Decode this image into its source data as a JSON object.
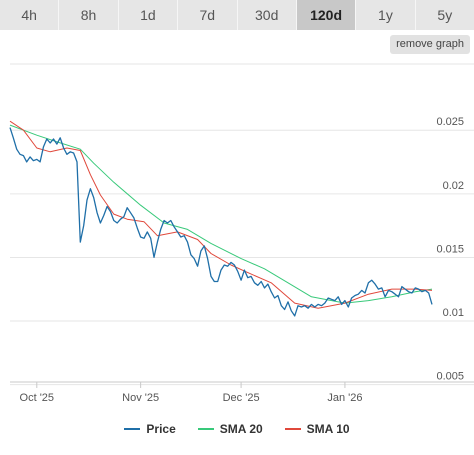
{
  "tabs": [
    {
      "label": "4h",
      "active": false
    },
    {
      "label": "8h",
      "active": false
    },
    {
      "label": "1d",
      "active": false
    },
    {
      "label": "7d",
      "active": false
    },
    {
      "label": "30d",
      "active": false
    },
    {
      "label": "120d",
      "active": true
    },
    {
      "label": "1y",
      "active": false
    },
    {
      "label": "5y",
      "active": false
    }
  ],
  "remove_graph_label": "remove graph",
  "chart_data": {
    "type": "line",
    "x_start": "2025-09-23",
    "x_end": "2026-01-27",
    "x_ticks": [
      {
        "date": "2025-10-01",
        "label": "Oct '25"
      },
      {
        "date": "2025-11-01",
        "label": "Nov '25"
      },
      {
        "date": "2025-12-01",
        "label": "Dec '25"
      },
      {
        "date": "2026-01-01",
        "label": "Jan '26"
      }
    ],
    "y_ticks": [
      {
        "value": 0.025,
        "label": "0.025"
      },
      {
        "value": 0.02,
        "label": "0.02"
      },
      {
        "value": 0.015,
        "label": "0.015"
      },
      {
        "value": 0.01,
        "label": "0.01"
      },
      {
        "value": 0.005,
        "label": "0.005"
      }
    ],
    "ylim": [
      0.0045,
      0.0295
    ],
    "grid": true,
    "legend": "bottom",
    "series": [
      {
        "name": "Price",
        "color": "#1f6fa8",
        "points": [
          [
            "2025-09-23",
            0.0245
          ],
          [
            "2025-09-24",
            0.0237
          ],
          [
            "2025-09-25",
            0.0228
          ],
          [
            "2025-09-26",
            0.0224
          ],
          [
            "2025-09-27",
            0.0223
          ],
          [
            "2025-09-28",
            0.0218
          ],
          [
            "2025-09-29",
            0.0222
          ],
          [
            "2025-09-30",
            0.0219
          ],
          [
            "2025-10-01",
            0.022
          ],
          [
            "2025-10-02",
            0.0218
          ],
          [
            "2025-10-03",
            0.023
          ],
          [
            "2025-10-04",
            0.0236
          ],
          [
            "2025-10-05",
            0.0233
          ],
          [
            "2025-10-06",
            0.0236
          ],
          [
            "2025-10-07",
            0.0232
          ],
          [
            "2025-10-08",
            0.0237
          ],
          [
            "2025-10-09",
            0.0229
          ],
          [
            "2025-10-10",
            0.0224
          ],
          [
            "2025-10-11",
            0.0226
          ],
          [
            "2025-10-12",
            0.0225
          ],
          [
            "2025-10-13",
            0.0218
          ],
          [
            "2025-10-14",
            0.0155
          ],
          [
            "2025-10-15",
            0.0168
          ],
          [
            "2025-10-16",
            0.0188
          ],
          [
            "2025-10-17",
            0.0197
          ],
          [
            "2025-10-18",
            0.019
          ],
          [
            "2025-10-19",
            0.0178
          ],
          [
            "2025-10-20",
            0.017
          ],
          [
            "2025-10-21",
            0.0176
          ],
          [
            "2025-10-22",
            0.0183
          ],
          [
            "2025-10-23",
            0.0179
          ],
          [
            "2025-10-24",
            0.0172
          ],
          [
            "2025-10-25",
            0.017
          ],
          [
            "2025-10-26",
            0.0173
          ],
          [
            "2025-10-27",
            0.0175
          ],
          [
            "2025-10-28",
            0.0182
          ],
          [
            "2025-10-29",
            0.0178
          ],
          [
            "2025-10-30",
            0.0174
          ],
          [
            "2025-10-31",
            0.0166
          ],
          [
            "2025-11-01",
            0.0159
          ],
          [
            "2025-11-02",
            0.0158
          ],
          [
            "2025-11-03",
            0.0163
          ],
          [
            "2025-11-04",
            0.0158
          ],
          [
            "2025-11-05",
            0.0143
          ],
          [
            "2025-11-06",
            0.0155
          ],
          [
            "2025-11-07",
            0.0165
          ],
          [
            "2025-11-08",
            0.0172
          ],
          [
            "2025-11-09",
            0.017
          ],
          [
            "2025-11-10",
            0.0172
          ],
          [
            "2025-11-11",
            0.0167
          ],
          [
            "2025-11-12",
            0.0163
          ],
          [
            "2025-11-13",
            0.0159
          ],
          [
            "2025-11-14",
            0.016
          ],
          [
            "2025-11-15",
            0.0155
          ],
          [
            "2025-11-16",
            0.0145
          ],
          [
            "2025-11-17",
            0.0142
          ],
          [
            "2025-11-18",
            0.0136
          ],
          [
            "2025-11-19",
            0.0148
          ],
          [
            "2025-11-20",
            0.0152
          ],
          [
            "2025-11-21",
            0.0142
          ],
          [
            "2025-11-22",
            0.0128
          ],
          [
            "2025-11-23",
            0.0124
          ],
          [
            "2025-11-24",
            0.0124
          ],
          [
            "2025-11-25",
            0.0133
          ],
          [
            "2025-11-26",
            0.0137
          ],
          [
            "2025-11-27",
            0.0136
          ],
          [
            "2025-11-28",
            0.0139
          ],
          [
            "2025-11-29",
            0.0137
          ],
          [
            "2025-11-30",
            0.0132
          ],
          [
            "2025-12-01",
            0.0125
          ],
          [
            "2025-12-02",
            0.0133
          ],
          [
            "2025-12-03",
            0.0127
          ],
          [
            "2025-12-04",
            0.0128
          ],
          [
            "2025-12-05",
            0.0123
          ],
          [
            "2025-12-06",
            0.0121
          ],
          [
            "2025-12-07",
            0.0124
          ],
          [
            "2025-12-08",
            0.0119
          ],
          [
            "2025-12-09",
            0.0122
          ],
          [
            "2025-12-10",
            0.0116
          ],
          [
            "2025-12-11",
            0.0111
          ],
          [
            "2025-12-12",
            0.0113
          ],
          [
            "2025-12-13",
            0.0105
          ],
          [
            "2025-12-14",
            0.0102
          ],
          [
            "2025-12-15",
            0.0108
          ],
          [
            "2025-12-16",
            0.0101
          ],
          [
            "2025-12-17",
            0.0097
          ],
          [
            "2025-12-18",
            0.0105
          ],
          [
            "2025-12-19",
            0.0104
          ],
          [
            "2025-12-20",
            0.0105
          ],
          [
            "2025-12-21",
            0.0103
          ],
          [
            "2025-12-22",
            0.0106
          ],
          [
            "2025-12-23",
            0.0104
          ],
          [
            "2025-12-24",
            0.0106
          ],
          [
            "2025-12-25",
            0.0105
          ],
          [
            "2025-12-26",
            0.0107
          ],
          [
            "2025-12-27",
            0.0111
          ],
          [
            "2025-12-28",
            0.011
          ],
          [
            "2025-12-29",
            0.0109
          ],
          [
            "2025-12-30",
            0.0112
          ],
          [
            "2025-12-31",
            0.0106
          ],
          [
            "2026-01-01",
            0.0109
          ],
          [
            "2026-01-02",
            0.0104
          ],
          [
            "2026-01-03",
            0.0111
          ],
          [
            "2026-01-04",
            0.0113
          ],
          [
            "2026-01-05",
            0.0114
          ],
          [
            "2026-01-06",
            0.0117
          ],
          [
            "2026-01-07",
            0.0115
          ],
          [
            "2026-01-08",
            0.0123
          ],
          [
            "2026-01-09",
            0.0125
          ],
          [
            "2026-01-10",
            0.0122
          ],
          [
            "2026-01-11",
            0.0118
          ],
          [
            "2026-01-12",
            0.0119
          ],
          [
            "2026-01-13",
            0.0112
          ],
          [
            "2026-01-14",
            0.0117
          ],
          [
            "2026-01-15",
            0.0116
          ],
          [
            "2026-01-16",
            0.0114
          ],
          [
            "2026-01-17",
            0.0112
          ],
          [
            "2026-01-18",
            0.012
          ],
          [
            "2026-01-19",
            0.0118
          ],
          [
            "2026-01-20",
            0.0116
          ],
          [
            "2026-01-21",
            0.0115
          ],
          [
            "2026-01-22",
            0.0119
          ],
          [
            "2026-01-23",
            0.0118
          ],
          [
            "2026-01-24",
            0.0116
          ],
          [
            "2026-01-25",
            0.0117
          ],
          [
            "2026-01-26",
            0.0115
          ],
          [
            "2026-01-27",
            0.0106
          ]
        ]
      },
      {
        "name": "SMA 20",
        "color": "#38c97a",
        "points": [
          [
            "2025-09-23",
            0.0247
          ],
          [
            "2025-10-01",
            0.0239
          ],
          [
            "2025-10-08",
            0.0233
          ],
          [
            "2025-10-14",
            0.0228
          ],
          [
            "2025-10-18",
            0.0217
          ],
          [
            "2025-10-24",
            0.0202
          ],
          [
            "2025-11-01",
            0.0184
          ],
          [
            "2025-11-08",
            0.017
          ],
          [
            "2025-11-15",
            0.0165
          ],
          [
            "2025-11-22",
            0.0154
          ],
          [
            "2025-12-01",
            0.0142
          ],
          [
            "2025-12-08",
            0.0134
          ],
          [
            "2025-12-15",
            0.0123
          ],
          [
            "2025-12-22",
            0.0112
          ],
          [
            "2026-01-01",
            0.0107
          ],
          [
            "2026-01-08",
            0.0109
          ],
          [
            "2026-01-15",
            0.0112
          ],
          [
            "2026-01-22",
            0.0116
          ],
          [
            "2026-01-27",
            0.0118
          ]
        ]
      },
      {
        "name": "SMA 10",
        "color": "#e0483b",
        "points": [
          [
            "2025-09-23",
            0.025
          ],
          [
            "2025-09-27",
            0.0243
          ],
          [
            "2025-10-01",
            0.0229
          ],
          [
            "2025-10-05",
            0.0226
          ],
          [
            "2025-10-10",
            0.0229
          ],
          [
            "2025-10-14",
            0.0227
          ],
          [
            "2025-10-17",
            0.0208
          ],
          [
            "2025-10-20",
            0.0192
          ],
          [
            "2025-10-24",
            0.0177
          ],
          [
            "2025-10-28",
            0.0173
          ],
          [
            "2025-11-02",
            0.0171
          ],
          [
            "2025-11-06",
            0.016
          ],
          [
            "2025-11-12",
            0.0163
          ],
          [
            "2025-11-18",
            0.0157
          ],
          [
            "2025-11-22",
            0.0146
          ],
          [
            "2025-11-28",
            0.0137
          ],
          [
            "2025-12-03",
            0.0131
          ],
          [
            "2025-12-10",
            0.0123
          ],
          [
            "2025-12-17",
            0.0107
          ],
          [
            "2025-12-24",
            0.0103
          ],
          [
            "2026-01-01",
            0.0107
          ],
          [
            "2026-01-08",
            0.0114
          ],
          [
            "2026-01-15",
            0.0118
          ],
          [
            "2026-01-22",
            0.0118
          ],
          [
            "2026-01-27",
            0.0117
          ]
        ]
      }
    ]
  }
}
